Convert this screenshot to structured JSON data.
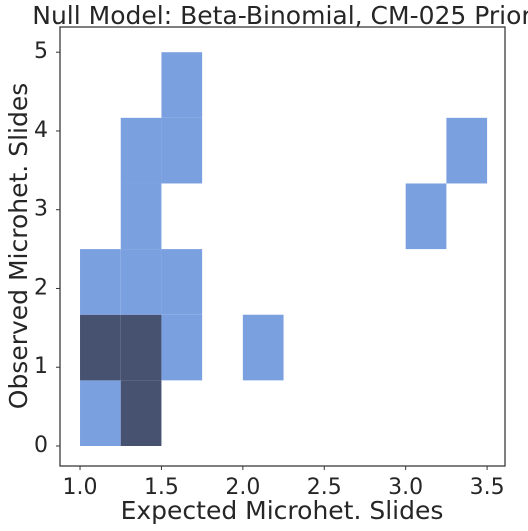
{
  "chart_data": {
    "type": "hist2d",
    "title": "Null Model: Beta-Binomial, CM-025 Prior",
    "xlabel": "Expected Microhet. Slides",
    "ylabel": "Observed Microhet. Slides",
    "x_bins": [
      1.0,
      1.25,
      1.5,
      1.75,
      2.0,
      2.25,
      2.5,
      2.75,
      3.0,
      3.25,
      3.5
    ],
    "y_bins": [
      0,
      0.8333,
      1.6667,
      2.5,
      3.3333,
      4.1667,
      5
    ],
    "counts": [
      [
        1,
        2,
        0,
        0,
        0,
        0,
        0,
        0,
        0,
        0
      ],
      [
        2,
        2,
        1,
        0,
        1,
        0,
        0,
        0,
        0,
        0
      ],
      [
        1,
        1,
        1,
        0,
        0,
        0,
        0,
        0,
        0,
        0
      ],
      [
        0,
        1,
        0,
        0,
        0,
        0,
        0,
        0,
        1,
        0
      ],
      [
        0,
        1,
        1,
        0,
        0,
        0,
        0,
        0,
        0,
        1
      ],
      [
        0,
        0,
        1,
        0,
        0,
        0,
        0,
        0,
        0,
        0
      ]
    ],
    "cmap": [
      "#7ba0e0",
      "#465270"
    ],
    "xlim": [
      0.877,
      3.61
    ],
    "ylim": [
      -0.254,
      5.32
    ],
    "xticks": [
      {
        "value": 1,
        "label": "1.0"
      },
      1.5,
      {
        "value": 2,
        "label": "2.0"
      },
      2.5,
      {
        "value": 3,
        "label": "3.0"
      },
      3.5
    ],
    "yticks": [
      0,
      1,
      2,
      3,
      4,
      5
    ],
    "grid": false
  }
}
